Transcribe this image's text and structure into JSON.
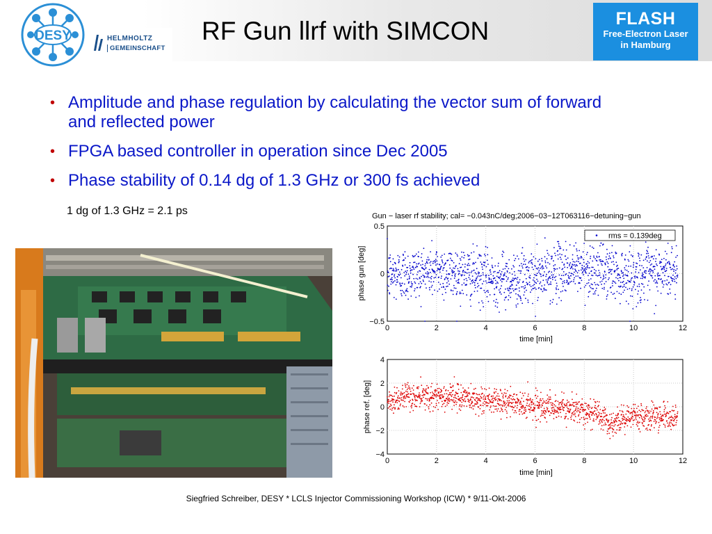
{
  "header": {
    "title": "RF Gun llrf with SIMCON",
    "desy_logo_text": "DESY",
    "helmholtz_line1": "HELMHOLTZ",
    "helmholtz_line2": "GEMEINSCHAFT",
    "flash_title": "FLASH",
    "flash_sub1": "Free-Electron Laser",
    "flash_sub2": "in Hamburg"
  },
  "bullets": [
    "Amplitude and phase regulation by calculating the vector sum of forward and reflected power",
    "FPGA based controller in operation since Dec 2005",
    "Phase stability of 0.14 dg of 1.3 GHz or 300 fs achieved"
  ],
  "note": "1 dg of 1.3 GHz = 2.1 ps",
  "photo": {
    "description": "photo of FPGA controller hardware in crate"
  },
  "footer": "Siegfried Schreiber, DESY  * LCLS Injector Commissioning Workshop (ICW) * 9/11-Okt-2006",
  "colors": {
    "bullet_text": "#0a17c8",
    "bullet_dot": "#c00000",
    "flash_bg": "#1b8fe0",
    "series_top": "#0000cc",
    "series_bottom": "#dd0000"
  },
  "chart_data": [
    {
      "type": "scatter",
      "title": "Gun − laser rf stability; cal= −0.043nC/deg;2006−03−12T063116−detuning−gun",
      "xlabel": "time [min]",
      "ylabel": "phase gun [deg]",
      "xlim": [
        0,
        12
      ],
      "ylim": [
        -0.5,
        0.5
      ],
      "xticks": [
        "0",
        "2",
        "4",
        "6",
        "8",
        "10",
        "12"
      ],
      "yticks": [
        "−0.5",
        "0",
        "0.5"
      ],
      "legend": {
        "label": "rms = 0.139deg",
        "placement": "top-right"
      },
      "grid": true,
      "series": [
        {
          "mean_profile": {
            "x": [
              0,
              1,
              2,
              3,
              4,
              5,
              6,
              7,
              8,
              9,
              10,
              11,
              11.8
            ],
            "y": [
              -0.02,
              0.0,
              0.03,
              0.0,
              -0.05,
              -0.06,
              -0.05,
              0.04,
              0.05,
              0.02,
              -0.02,
              0.0,
              0.03
            ]
          },
          "spread": 0.139,
          "points": 1500
        }
      ]
    },
    {
      "type": "scatter",
      "title": "",
      "xlabel": "time [min]",
      "ylabel": "phase ref. [deg]",
      "xlim": [
        0,
        12
      ],
      "ylim": [
        -4,
        4
      ],
      "xticks": [
        "0",
        "2",
        "4",
        "6",
        "8",
        "10",
        "12"
      ],
      "yticks": [
        "−4",
        "−2",
        "0",
        "2",
        "4"
      ],
      "grid": true,
      "series": [
        {
          "mean_profile": {
            "x": [
              0,
              1,
              2,
              3,
              4,
              5,
              6,
              7,
              8,
              8.7,
              9,
              9.5,
              10,
              11,
              11.8
            ],
            "y": [
              0.5,
              0.8,
              0.9,
              0.8,
              0.5,
              0.3,
              0.1,
              -0.1,
              -0.3,
              -0.6,
              -1.6,
              -1.1,
              -0.7,
              -0.8,
              -1.0
            ]
          },
          "spread": 0.55,
          "points": 1400
        }
      ]
    }
  ]
}
